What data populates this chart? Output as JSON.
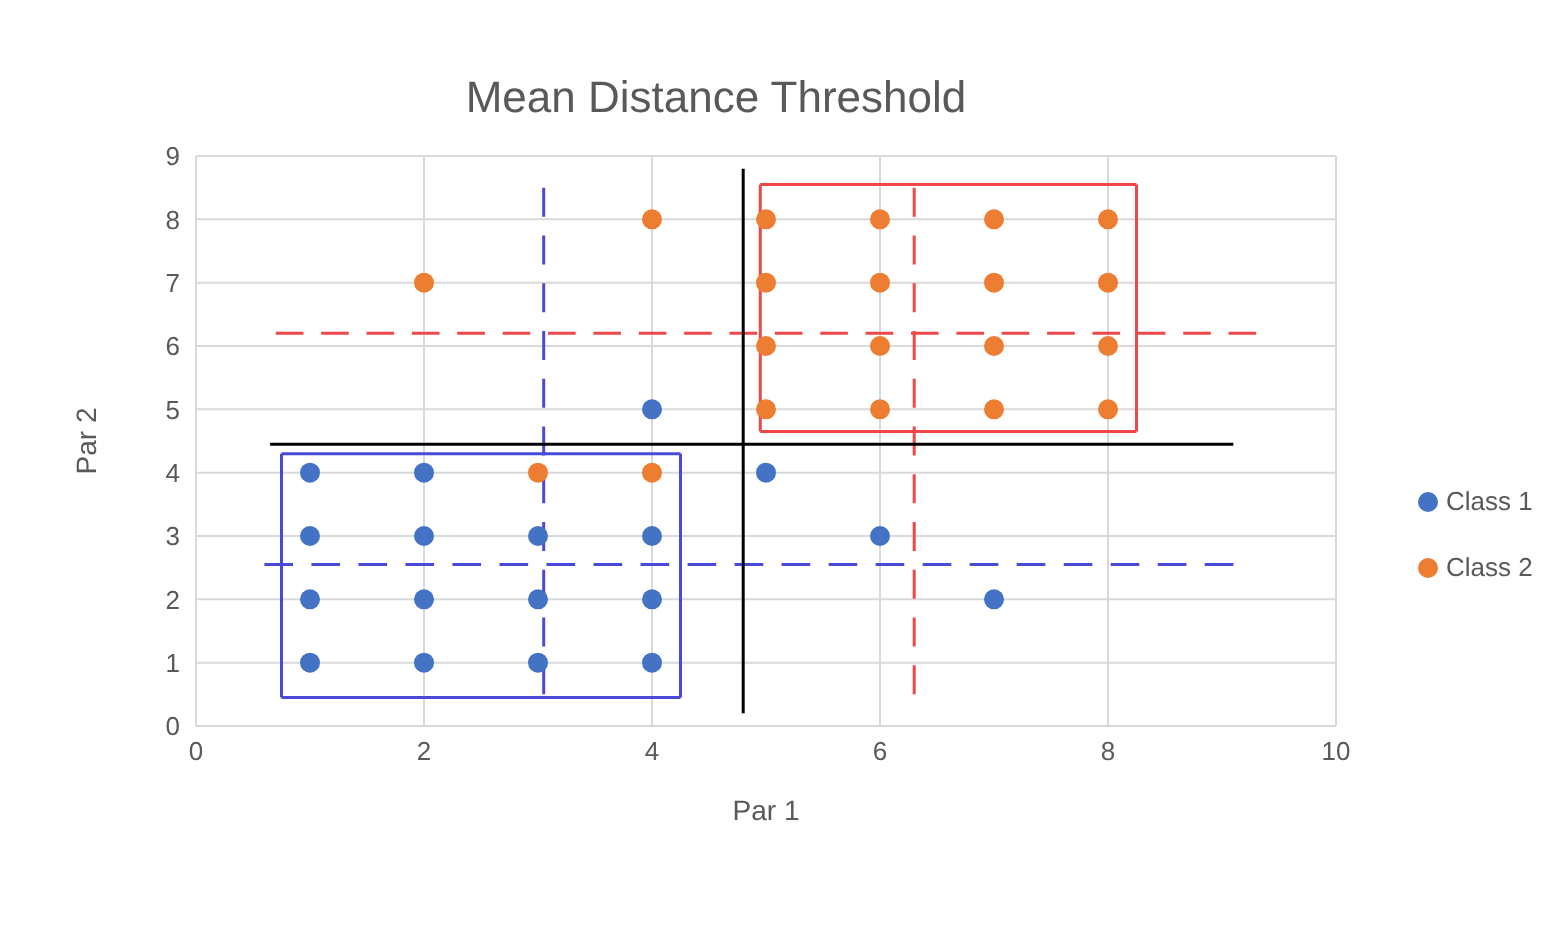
{
  "chart_data": {
    "type": "scatter",
    "title": "Mean Distance Threshold",
    "xlabel": "Par 1",
    "ylabel": "Par 2",
    "xlim": [
      0,
      10
    ],
    "xticks": [
      0,
      2,
      4,
      6,
      8,
      10
    ],
    "ylim": [
      0,
      9
    ],
    "yticks": [
      0,
      1,
      2,
      3,
      4,
      5,
      6,
      7,
      8,
      9
    ],
    "grid": true,
    "legend": "right",
    "marker": "circle",
    "series": [
      {
        "name": "Class 1",
        "color": "#4472c4",
        "x": [
          1,
          1,
          1,
          1,
          2,
          2,
          2,
          2,
          3,
          3,
          3,
          4,
          4,
          4,
          4,
          5,
          6,
          7
        ],
        "values": [
          1,
          2,
          3,
          4,
          1,
          2,
          3,
          4,
          1,
          2,
          3,
          1,
          2,
          3,
          5,
          4,
          3,
          2
        ]
      },
      {
        "name": "Class 2",
        "color": "#ed7d31",
        "x": [
          2,
          3,
          4,
          4,
          5,
          5,
          5,
          5,
          6,
          6,
          6,
          6,
          7,
          7,
          7,
          7,
          8,
          8,
          8,
          8
        ],
        "values": [
          7,
          4,
          4,
          8,
          5,
          6,
          7,
          8,
          5,
          6,
          7,
          8,
          5,
          6,
          7,
          8,
          5,
          6,
          7,
          8
        ]
      },
      {
        "type": "line",
        "line_style": "dashed",
        "marker": "none",
        "color": "#4a4ad8",
        "x": [
          3.05,
          3.05
        ],
        "values": [
          0.5,
          8.5
        ]
      },
      {
        "type": "line",
        "line_style": "dashed",
        "marker": "none",
        "color": "#4a4ad8",
        "x": [
          0.6,
          9.1
        ],
        "values": [
          2.55,
          2.55
        ]
      },
      {
        "type": "line",
        "line_style": "dashed",
        "marker": "none",
        "color": "#f04848",
        "x": [
          6.3,
          6.3
        ],
        "values": [
          0.5,
          8.5
        ]
      },
      {
        "type": "line",
        "line_style": "dashed",
        "marker": "none",
        "color": "#f04848",
        "x": [
          0.7,
          9.3
        ],
        "values": [
          6.2,
          6.2
        ]
      },
      {
        "type": "line",
        "line_style": "solid",
        "marker": "none",
        "color": "#000000",
        "x": [
          4.8,
          4.8
        ],
        "values": [
          0.2,
          8.8
        ]
      },
      {
        "type": "line",
        "line_style": "solid",
        "marker": "none",
        "color": "#000000",
        "x": [
          0.65,
          9.1
        ],
        "values": [
          4.45,
          4.45
        ]
      },
      {
        "type": "line",
        "line_style": "solid",
        "marker": "none",
        "color": "#4a4ad8",
        "x": [
          0.75,
          4.25
        ],
        "values": [
          0.45,
          0.45
        ]
      },
      {
        "type": "line",
        "line_style": "solid",
        "marker": "none",
        "color": "#4a4ad8",
        "x": [
          0.75,
          4.25
        ],
        "values": [
          4.3,
          4.3
        ]
      },
      {
        "type": "line",
        "line_style": "solid",
        "marker": "none",
        "color": "#4a4ad8",
        "x": [
          0.75,
          0.75
        ],
        "values": [
          0.45,
          4.3
        ]
      },
      {
        "type": "line",
        "line_style": "solid",
        "marker": "none",
        "color": "#4a4ad8",
        "x": [
          4.25,
          4.25
        ],
        "values": [
          0.45,
          4.3
        ]
      },
      {
        "type": "line",
        "line_style": "solid",
        "marker": "none",
        "color": "#f04848",
        "x": [
          4.95,
          8.25
        ],
        "values": [
          4.65,
          4.65
        ]
      },
      {
        "type": "line",
        "line_style": "solid",
        "marker": "none",
        "color": "#f04848",
        "x": [
          4.95,
          8.25
        ],
        "values": [
          8.55,
          8.55
        ]
      },
      {
        "type": "line",
        "line_style": "solid",
        "marker": "none",
        "color": "#f04848",
        "x": [
          4.95,
          4.95
        ],
        "values": [
          4.65,
          8.55
        ]
      },
      {
        "type": "line",
        "line_style": "solid",
        "marker": "none",
        "color": "#f04848",
        "x": [
          8.25,
          8.25
        ],
        "values": [
          4.65,
          8.55
        ]
      }
    ]
  }
}
